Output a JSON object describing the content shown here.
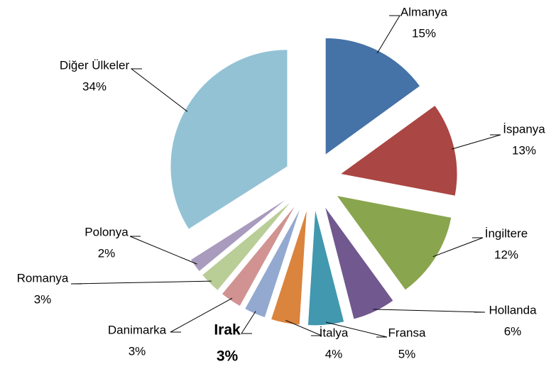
{
  "chart_data": {
    "type": "pie",
    "categories": [
      "Almanya",
      "İspanya",
      "İngiltere",
      "Hollanda",
      "Fransa",
      "İtalya",
      "Irak",
      "Danimarka",
      "Romanya",
      "Polonya",
      "Diğer Ülkeler"
    ],
    "values": [
      15,
      13,
      12,
      6,
      5,
      4,
      3,
      3,
      3,
      2,
      34
    ],
    "value_labels": [
      "15%",
      "13%",
      "12%",
      "6%",
      "5%",
      "4%",
      "3%",
      "3%",
      "3%",
      "2%",
      "34%"
    ],
    "colors": [
      "#4572a7",
      "#aa4643",
      "#89a54e",
      "#71588f",
      "#4198af",
      "#db843d",
      "#93a9cf",
      "#d19392",
      "#b9cd96",
      "#a99bbd",
      "#93c2d5"
    ],
    "bold_labels": [
      6
    ]
  }
}
